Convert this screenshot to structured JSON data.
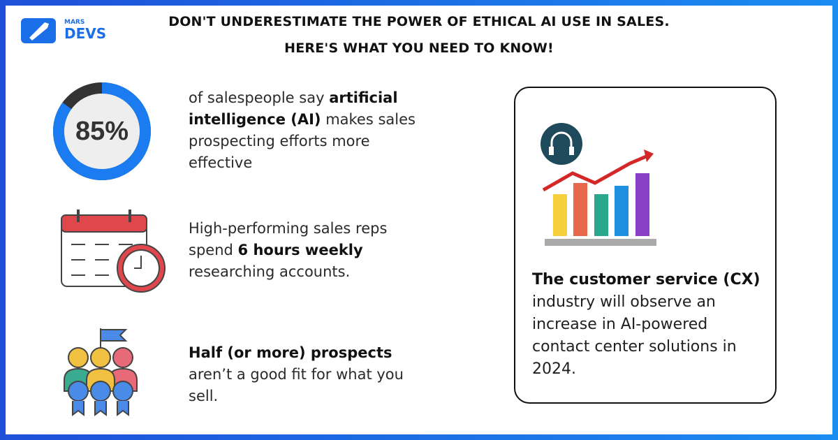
{
  "logo": {
    "small": "MARS",
    "big": "DEVS"
  },
  "title": [
    "DON'T UNDERESTIMATE THE POWER OF ETHICAL AI USE IN SALES.",
    "HERE'S WHAT YOU NEED TO KNOW!"
  ],
  "ring": {
    "value": 85,
    "label": "85%"
  },
  "stats": [
    [
      {
        "text": "of salespeople say ",
        "bold": false
      },
      {
        "text": "artificial intelligence (AI)",
        "bold": true
      },
      {
        "text": " makes sales prospecting efforts more effective",
        "bold": false
      }
    ],
    [
      {
        "text": "High-performing sales reps spend ",
        "bold": false
      },
      {
        "text": "6 hours weekly",
        "bold": true
      },
      {
        "text": " researching accounts.",
        "bold": false
      }
    ],
    [
      {
        "text": "Half (or more) prospects",
        "bold": true
      },
      {
        "text": " aren’t a good fit for what you sell.",
        "bold": false
      }
    ]
  ],
  "card": [
    {
      "text": "The customer service (CX)",
      "bold": true
    },
    {
      "text": " industry will observe an increase in AI-powered contact center solutions in 2024.",
      "bold": false
    }
  ]
}
